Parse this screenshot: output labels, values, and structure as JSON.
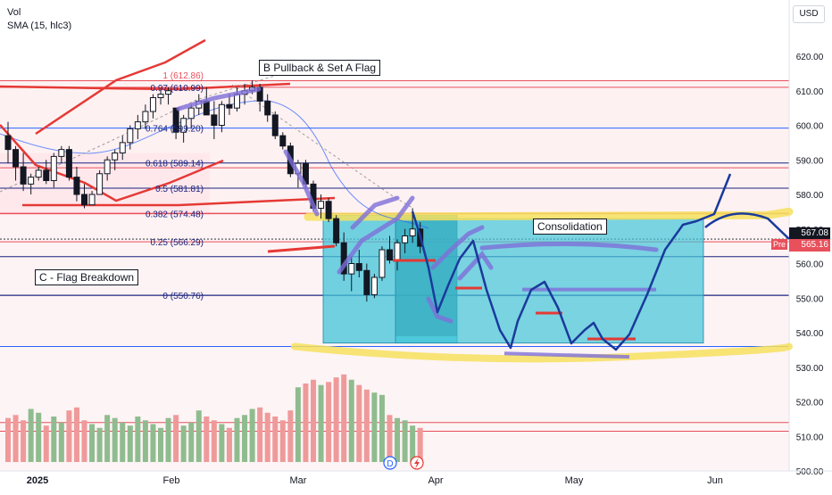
{
  "legend": {
    "line1": "Vol",
    "line2": "SMA (15, hlc3)"
  },
  "currency_button": "USD",
  "annotations": {
    "pullback": "B Pullback & Set A Flag",
    "breakdown": "C - Flag Breakdown",
    "consolidation": "Consolidation"
  },
  "price_tags": {
    "last": "567.08",
    "pre_label": "Pre",
    "pre": "565.16"
  },
  "colors": {
    "up": "#26a69a",
    "down": "#131722",
    "fib_red": "#e8505b",
    "fib_blue": "#2962ff",
    "fib_navy": "#1a237e",
    "vol_up": "#8fbc8f",
    "vol_down": "#ef9a9a",
    "box_teal": "#40c4d8",
    "drawing_blue": "#1a3a9c",
    "drawing_purple": "#7e6fd8",
    "highlighter_yellow": "#f6e05e",
    "marker_red": "#e53935"
  },
  "icons": {
    "dividend": "D",
    "earnings": "lightning-icon"
  },
  "chart_data": {
    "type": "candlestick",
    "ylim": [
      497,
      628
    ],
    "ytick_labels": [
      "620.00",
      "610.00",
      "600.00",
      "590.00",
      "580.00",
      "570.00",
      "560.00",
      "550.00",
      "540.00",
      "530.00",
      "520.00",
      "510.00",
      "500.00"
    ],
    "y_ticks": [
      620,
      610,
      600,
      590,
      580,
      570,
      560,
      550,
      540,
      530,
      520,
      510,
      500
    ],
    "x_labels": [
      "2025",
      "Feb",
      "Mar",
      "Apr",
      "May",
      "Jun"
    ],
    "fib_levels": [
      {
        "label": "0.97 (610.99)",
        "value": 611.0
      },
      {
        "label": "0.764 (599.20)",
        "value": 599.2
      },
      {
        "label": "0.618 (589.14)",
        "value": 589.1
      },
      {
        "label": "0.5 (581.81)",
        "value": 581.8
      },
      {
        "label": "0.382 (574.48)",
        "value": 574.5
      },
      {
        "label": "0.25 (566.29)",
        "value": 566.3
      },
      {
        "label": "0 (550.76)",
        "value": 550.8
      }
    ],
    "fib_top_label": "1 (612.86)",
    "sma_label": "SMA (15, hlc3)",
    "candles": [
      [
        597,
        601,
        589,
        593
      ],
      [
        593,
        594,
        584,
        588
      ],
      [
        588,
        592,
        581,
        583
      ],
      [
        583,
        586,
        580,
        585
      ],
      [
        585,
        588,
        584,
        587
      ],
      [
        587,
        590,
        583,
        584
      ],
      [
        584,
        592,
        582,
        591
      ],
      [
        591,
        594,
        589,
        593
      ],
      [
        593,
        594,
        584,
        585
      ],
      [
        585,
        588,
        578,
        580
      ],
      [
        580,
        583,
        576,
        577
      ],
      [
        577,
        581,
        577,
        580
      ],
      [
        580,
        587,
        580,
        586
      ],
      [
        586,
        591,
        584,
        590
      ],
      [
        590,
        593,
        587,
        592
      ],
      [
        592,
        597,
        590,
        595
      ],
      [
        595,
        600,
        593,
        599
      ],
      [
        599,
        603,
        596,
        601
      ],
      [
        601,
        606,
        599,
        604
      ],
      [
        604,
        609,
        602,
        608
      ],
      [
        608,
        610,
        606,
        609
      ],
      [
        609,
        611,
        606,
        610
      ],
      [
        605,
        604,
        596,
        598
      ],
      [
        598,
        603,
        595,
        602
      ],
      [
        602,
        606,
        599,
        605
      ],
      [
        605,
        609,
        603,
        607
      ],
      [
        607,
        611,
        604,
        603
      ],
      [
        603,
        607,
        596,
        600
      ],
      [
        600,
        607,
        598,
        606
      ],
      [
        606,
        609,
        603,
        605
      ],
      [
        605,
        611,
        604,
        609
      ],
      [
        609,
        612,
        606,
        610
      ],
      [
        610,
        613,
        609,
        611
      ],
      [
        611,
        612,
        604,
        607
      ],
      [
        607,
        609,
        601,
        603
      ],
      [
        603,
        604,
        596,
        597
      ],
      [
        597,
        598,
        593,
        594
      ],
      [
        594,
        595,
        585,
        586
      ],
      [
        586,
        590,
        582,
        589
      ],
      [
        589,
        590,
        582,
        583
      ],
      [
        583,
        584,
        575,
        576
      ],
      [
        576,
        580,
        573,
        578
      ],
      [
        578,
        579,
        572,
        573
      ],
      [
        573,
        574,
        565,
        566
      ],
      [
        566,
        569,
        555,
        557
      ],
      [
        557,
        562,
        552,
        560
      ],
      [
        560,
        564,
        556,
        558
      ],
      [
        558,
        560,
        549,
        551
      ],
      [
        551,
        557,
        550,
        556
      ],
      [
        556,
        565,
        555,
        564
      ],
      [
        564,
        568,
        560,
        561
      ],
      [
        561,
        567,
        558,
        566
      ],
      [
        566,
        570,
        563,
        568
      ],
      [
        568,
        576,
        566,
        570
      ],
      [
        570,
        572,
        563,
        565
      ]
    ],
    "volume_scale_note": "",
    "scenario_path_note": ""
  }
}
